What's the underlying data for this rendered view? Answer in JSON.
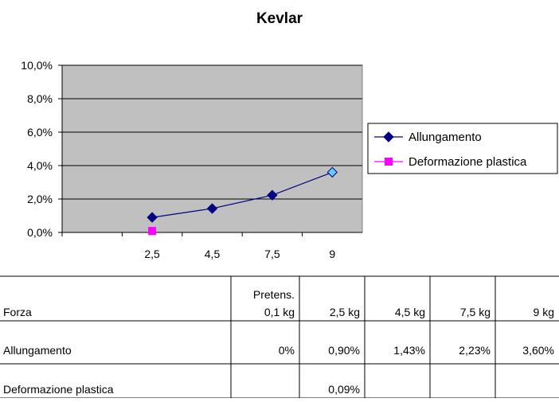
{
  "chart_data": {
    "type": "line",
    "title": "Kevlar",
    "categories": [
      null,
      "2,5",
      "4,5",
      "7,5",
      "9"
    ],
    "series": [
      {
        "name": "Allungamento",
        "color": "#000080",
        "marker": "diamond",
        "values": [
          null,
          0.9,
          1.43,
          2.23,
          3.6
        ],
        "marker_colors": [
          null,
          "#000080",
          "#000080",
          "#000080",
          "#66ccff"
        ]
      },
      {
        "name": "Deformazione plastica",
        "color": "#ff00ff",
        "marker": "square",
        "values": [
          null,
          0.09,
          null,
          null,
          null
        ]
      }
    ],
    "ylim": [
      0,
      10
    ],
    "yticks": [
      {
        "value": 0,
        "label": "0,0%"
      },
      {
        "value": 2,
        "label": "2,0%"
      },
      {
        "value": 4,
        "label": "4,0%"
      },
      {
        "value": 6,
        "label": "6,0%"
      },
      {
        "value": 8,
        "label": "8,0%"
      },
      {
        "value": 10,
        "label": "10,0%"
      }
    ],
    "grid": true,
    "legend": "right",
    "plot_background": "#c0c0c0"
  },
  "table": {
    "header": [
      "Forza",
      [
        "Pretens.",
        "0,1 kg"
      ],
      "2,5 kg",
      "4,5 kg",
      "7,5 kg",
      "9 kg"
    ],
    "rows": [
      [
        "Allungamento",
        "0%",
        "0,90%",
        "1,43%",
        "2,23%",
        "3,60%"
      ],
      [
        "Deformazione plastica",
        null,
        "0,09%",
        null,
        null,
        null
      ]
    ]
  }
}
